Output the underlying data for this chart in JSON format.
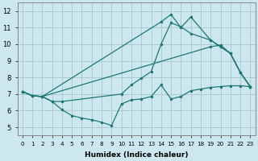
{
  "xlabel": "Humidex (Indice chaleur)",
  "xlim": [
    -0.5,
    23.5
  ],
  "ylim": [
    4.5,
    12.5
  ],
  "xticks": [
    0,
    1,
    2,
    3,
    4,
    5,
    6,
    7,
    8,
    9,
    10,
    11,
    12,
    13,
    14,
    15,
    16,
    17,
    18,
    19,
    20,
    21,
    22,
    23
  ],
  "yticks": [
    5,
    6,
    7,
    8,
    9,
    10,
    11,
    12
  ],
  "bg_color": "#cce8ee",
  "line_color": "#1e7870",
  "grid_color": "#aacad2",
  "lines": [
    {
      "x": [
        0,
        1,
        2,
        3,
        4,
        5,
        6,
        7,
        8,
        9,
        10,
        11,
        12,
        13,
        14,
        15,
        16,
        17,
        18,
        19,
        20,
        21,
        22,
        23
      ],
      "y": [
        7.15,
        6.9,
        6.85,
        6.55,
        6.05,
        5.7,
        5.55,
        5.45,
        5.3,
        5.1,
        6.4,
        6.65,
        6.7,
        6.85,
        7.55,
        6.7,
        6.85,
        7.2,
        7.3,
        7.4,
        7.45,
        7.5,
        7.5,
        7.45
      ]
    },
    {
      "x": [
        0,
        1,
        2,
        3,
        4,
        10,
        11,
        12,
        13,
        14,
        15,
        16,
        17,
        19,
        20,
        21,
        22,
        23
      ],
      "y": [
        7.15,
        6.9,
        6.85,
        6.55,
        6.55,
        7.0,
        7.55,
        7.95,
        8.35,
        10.0,
        11.3,
        11.05,
        10.65,
        10.25,
        9.85,
        9.45,
        8.3,
        7.45
      ]
    },
    {
      "x": [
        0,
        1,
        2,
        14,
        15,
        16,
        17,
        19,
        20,
        21,
        22,
        23
      ],
      "y": [
        7.15,
        6.9,
        6.85,
        11.35,
        11.8,
        11.0,
        11.65,
        10.25,
        9.85,
        9.45,
        8.3,
        7.45
      ]
    },
    {
      "x": [
        0,
        1,
        2,
        19,
        20,
        21,
        22,
        23
      ],
      "y": [
        7.15,
        6.9,
        6.85,
        9.85,
        9.95,
        9.45,
        8.3,
        7.45
      ]
    }
  ]
}
